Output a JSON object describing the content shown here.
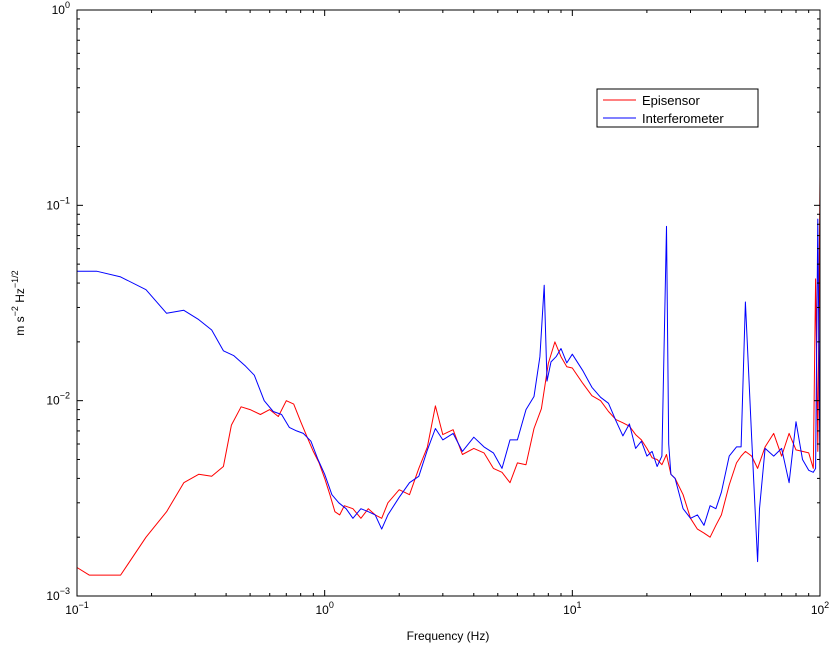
{
  "chart_data": {
    "type": "line",
    "title": "",
    "xlabel": "Frequency (Hz)",
    "ylabel_base": "m s",
    "ylabel_exp1": "−2",
    "ylabel_mid": " Hz",
    "ylabel_exp2": "−1/2",
    "xscale": "log",
    "yscale": "log",
    "xlim": [
      0.1,
      100
    ],
    "ylim": [
      0.001,
      1
    ],
    "grid": false,
    "legend_position": "top-right",
    "x_ticks": [
      {
        "value": 0.1,
        "base": "10",
        "exp": "−1"
      },
      {
        "value": 1,
        "base": "10",
        "exp": "0"
      },
      {
        "value": 10,
        "base": "10",
        "exp": "1"
      },
      {
        "value": 100,
        "base": "10",
        "exp": "2"
      }
    ],
    "y_ticks": [
      {
        "value": 0.001,
        "base": "10",
        "exp": "−3"
      },
      {
        "value": 0.01,
        "base": "10",
        "exp": "−2"
      },
      {
        "value": 0.1,
        "base": "10",
        "exp": "−1"
      },
      {
        "value": 1,
        "base": "10",
        "exp": "0"
      }
    ],
    "series": [
      {
        "name": "Episensor",
        "color": "#ff0000",
        "x": [
          0.1,
          0.112,
          0.15,
          0.19,
          0.23,
          0.27,
          0.31,
          0.35,
          0.39,
          0.42,
          0.46,
          0.5,
          0.55,
          0.6,
          0.65,
          0.7,
          0.75,
          0.8,
          0.85,
          0.9,
          0.95,
          1.0,
          1.05,
          1.1,
          1.15,
          1.2,
          1.3,
          1.4,
          1.5,
          1.6,
          1.7,
          1.8,
          2.0,
          2.2,
          2.4,
          2.6,
          2.8,
          3.0,
          3.3,
          3.6,
          4.0,
          4.4,
          4.8,
          5.2,
          5.6,
          6.0,
          6.5,
          7.0,
          7.5,
          8.0,
          8.5,
          9.0,
          9.5,
          10,
          11,
          12,
          13,
          14,
          15,
          16,
          17,
          18,
          19,
          20,
          21,
          22,
          23,
          24,
          25,
          26,
          28,
          30,
          32,
          34,
          36,
          38,
          40,
          43,
          46,
          48,
          50,
          53,
          56,
          60,
          65,
          70,
          75,
          80,
          85,
          90,
          94,
          96,
          98,
          100
        ],
        "y": [
          0.0014,
          0.00128,
          0.00128,
          0.002,
          0.0027,
          0.0038,
          0.0042,
          0.0041,
          0.0046,
          0.0075,
          0.0093,
          0.009,
          0.0085,
          0.009,
          0.0083,
          0.01,
          0.0096,
          0.0078,
          0.0065,
          0.0055,
          0.0048,
          0.004,
          0.0033,
          0.0027,
          0.0026,
          0.0029,
          0.0028,
          0.0025,
          0.0028,
          0.0026,
          0.0025,
          0.003,
          0.0035,
          0.0033,
          0.0045,
          0.0058,
          0.0094,
          0.0067,
          0.0071,
          0.0053,
          0.0057,
          0.0054,
          0.0045,
          0.0043,
          0.0038,
          0.0048,
          0.0047,
          0.0072,
          0.0091,
          0.0155,
          0.02,
          0.0168,
          0.0149,
          0.0147,
          0.0123,
          0.0106,
          0.01,
          0.0088,
          0.008,
          0.0077,
          0.0074,
          0.0067,
          0.0063,
          0.0057,
          0.0051,
          0.005,
          0.0047,
          0.0053,
          0.0042,
          0.004,
          0.0033,
          0.0025,
          0.0022,
          0.0021,
          0.002,
          0.0023,
          0.0026,
          0.0037,
          0.0048,
          0.0052,
          0.0055,
          0.0052,
          0.0045,
          0.0058,
          0.0068,
          0.0052,
          0.0068,
          0.0056,
          0.0055,
          0.0054,
          0.0045,
          0.042,
          0.0055,
          0.14
        ]
      },
      {
        "name": "Interferometer",
        "color": "#0000ff",
        "x": [
          0.1,
          0.12,
          0.15,
          0.19,
          0.23,
          0.27,
          0.31,
          0.35,
          0.39,
          0.43,
          0.48,
          0.52,
          0.57,
          0.62,
          0.67,
          0.72,
          0.77,
          0.82,
          0.88,
          0.94,
          1.0,
          1.07,
          1.14,
          1.22,
          1.3,
          1.4,
          1.5,
          1.6,
          1.7,
          1.8,
          2.0,
          2.2,
          2.4,
          2.6,
          2.8,
          3.0,
          3.3,
          3.6,
          4.0,
          4.4,
          4.8,
          5.2,
          5.6,
          6.0,
          6.5,
          7.0,
          7.4,
          7.7,
          7.9,
          8.2,
          8.6,
          9.0,
          9.5,
          10,
          11,
          12,
          13,
          14,
          15,
          16,
          17,
          18,
          19,
          20,
          21,
          22,
          23,
          24,
          24.5,
          25,
          26,
          28,
          30,
          32,
          34,
          36,
          38,
          40,
          43,
          46,
          48,
          50,
          53,
          56,
          57,
          60,
          65,
          70,
          75,
          80,
          85,
          90,
          94,
          96,
          98,
          100
        ],
        "y": [
          0.046,
          0.046,
          0.043,
          0.037,
          0.028,
          0.029,
          0.026,
          0.023,
          0.018,
          0.017,
          0.015,
          0.0135,
          0.01,
          0.0088,
          0.0085,
          0.0073,
          0.007,
          0.0068,
          0.0062,
          0.005,
          0.0042,
          0.0033,
          0.003,
          0.0028,
          0.0025,
          0.0028,
          0.0027,
          0.0026,
          0.0022,
          0.0026,
          0.0032,
          0.0038,
          0.0041,
          0.0056,
          0.0072,
          0.0063,
          0.0068,
          0.0055,
          0.0065,
          0.0058,
          0.0054,
          0.0045,
          0.0063,
          0.0063,
          0.009,
          0.0105,
          0.0168,
          0.039,
          0.0126,
          0.0158,
          0.0168,
          0.0185,
          0.0156,
          0.0173,
          0.0143,
          0.0117,
          0.0104,
          0.0097,
          0.0079,
          0.0066,
          0.0076,
          0.0057,
          0.0062,
          0.0052,
          0.0055,
          0.0046,
          0.0052,
          0.078,
          0.006,
          0.0042,
          0.004,
          0.0028,
          0.0025,
          0.0026,
          0.0023,
          0.0029,
          0.0028,
          0.0034,
          0.0052,
          0.0058,
          0.0058,
          0.032,
          0.0064,
          0.0015,
          0.0028,
          0.0057,
          0.0052,
          0.0057,
          0.0038,
          0.0078,
          0.005,
          0.0044,
          0.0043,
          0.0045,
          0.085,
          0.0041
        ]
      }
    ]
  }
}
